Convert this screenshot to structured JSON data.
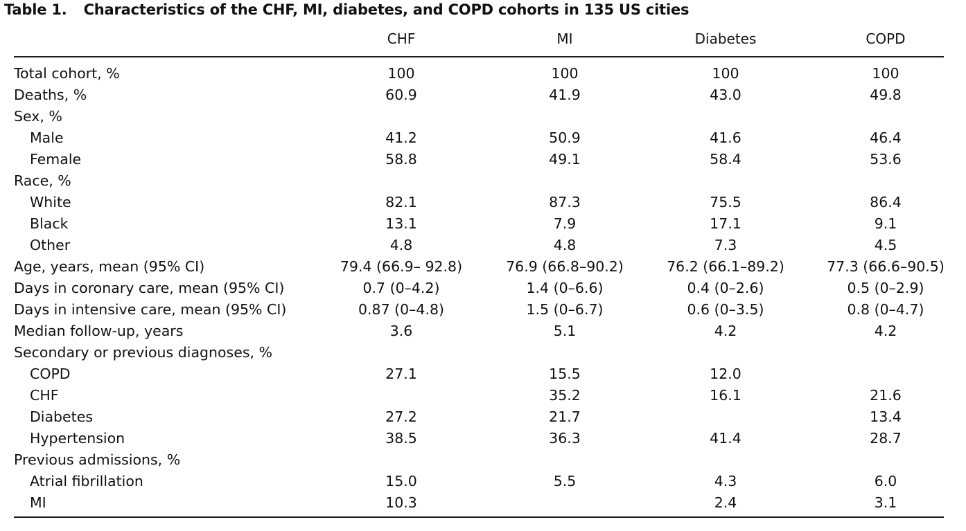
{
  "caption": {
    "label": "Table 1.",
    "title": "Characteristics of the CHF, MI, diabetes, and COPD cohorts in 135 US cities"
  },
  "columns": [
    "CHF",
    "MI",
    "Diabetes",
    "COPD"
  ],
  "rows": [
    {
      "label": "Total cohort, %",
      "indent": false,
      "values": [
        "100",
        "100",
        "100",
        "100"
      ]
    },
    {
      "label": "Deaths, %",
      "indent": false,
      "values": [
        "60.9",
        "41.9",
        "43.0",
        "49.8"
      ]
    },
    {
      "label": "Sex, %",
      "indent": false,
      "values": [
        "",
        "",
        "",
        ""
      ]
    },
    {
      "label": "Male",
      "indent": true,
      "values": [
        "41.2",
        "50.9",
        "41.6",
        "46.4"
      ]
    },
    {
      "label": "Female",
      "indent": true,
      "values": [
        "58.8",
        "49.1",
        "58.4",
        "53.6"
      ]
    },
    {
      "label": "Race, %",
      "indent": false,
      "values": [
        "",
        "",
        "",
        ""
      ]
    },
    {
      "label": "White",
      "indent": true,
      "values": [
        "82.1",
        "87.3",
        "75.5",
        "86.4"
      ]
    },
    {
      "label": "Black",
      "indent": true,
      "values": [
        "13.1",
        "7.9",
        "17.1",
        "9.1"
      ]
    },
    {
      "label": "Other",
      "indent": true,
      "values": [
        "4.8",
        "4.8",
        "7.3",
        "4.5"
      ]
    },
    {
      "label": "Age, years, mean (95% CI)",
      "indent": false,
      "values": [
        "79.4 (66.9– 92.8)",
        "76.9 (66.8–90.2)",
        "76.2 (66.1–89.2)",
        "77.3 (66.6–90.5)"
      ]
    },
    {
      "label": "Days in coronary care, mean (95% CI)",
      "indent": false,
      "values": [
        "0.7 (0–4.2)",
        "1.4 (0–6.6)",
        "0.4 (0–2.6)",
        "0.5 (0–2.9)"
      ]
    },
    {
      "label": "Days in intensive care, mean (95% CI)",
      "indent": false,
      "values": [
        "0.87 (0–4.8)",
        "1.5 (0–6.7)",
        "0.6 (0–3.5)",
        "0.8 (0–4.7)"
      ]
    },
    {
      "label": "Median follow-up, years",
      "indent": false,
      "values": [
        "3.6",
        "5.1",
        "4.2",
        "4.2"
      ]
    },
    {
      "label": "Secondary or previous diagnoses, %",
      "indent": false,
      "values": [
        "",
        "",
        "",
        ""
      ]
    },
    {
      "label": "COPD",
      "indent": true,
      "values": [
        "27.1",
        "15.5",
        "12.0",
        ""
      ]
    },
    {
      "label": "CHF",
      "indent": true,
      "values": [
        "",
        "35.2",
        "16.1",
        "21.6"
      ]
    },
    {
      "label": "Diabetes",
      "indent": true,
      "values": [
        "27.2",
        "21.7",
        "",
        "13.4"
      ]
    },
    {
      "label": "Hypertension",
      "indent": true,
      "values": [
        "38.5",
        "36.3",
        "41.4",
        "28.7"
      ]
    },
    {
      "label": "Previous admissions, %",
      "indent": false,
      "values": [
        "",
        "",
        "",
        ""
      ]
    },
    {
      "label": "Atrial fibrillation",
      "indent": true,
      "values": [
        "15.0",
        "5.5",
        "4.3",
        "6.0"
      ]
    },
    {
      "label": "MI",
      "indent": true,
      "values": [
        "10.3",
        "",
        "2.4",
        "3.1"
      ]
    }
  ]
}
